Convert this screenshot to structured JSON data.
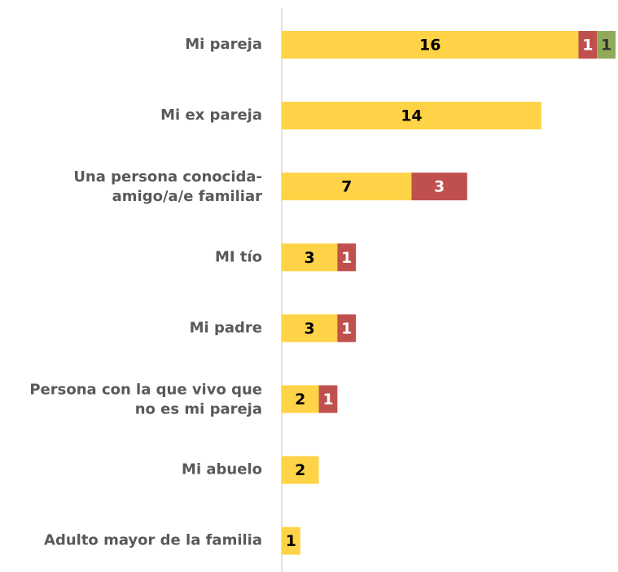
{
  "chart_data": {
    "type": "stacked-barh",
    "categories": [
      "Mi pareja",
      "Mi ex pareja",
      [
        "Una persona conocida-",
        "amigo/a/e familiar"
      ],
      "MI tío",
      "Mi padre",
      [
        "Persona con la que vivo que",
        "no es mi pareja"
      ],
      "Mi abuelo",
      "Adulto mayor de la familia"
    ],
    "series": [
      {
        "color": "#FFD347",
        "values": [
          16,
          14,
          7,
          3,
          3,
          2,
          2,
          1
        ]
      },
      {
        "color": "#C0504D",
        "values": [
          1,
          null,
          3,
          1,
          1,
          1,
          null,
          null
        ]
      },
      {
        "color": "#8FAB5A",
        "values": [
          1,
          null,
          null,
          null,
          null,
          null,
          null,
          null
        ]
      }
    ],
    "xlim": [
      0,
      18
    ]
  }
}
